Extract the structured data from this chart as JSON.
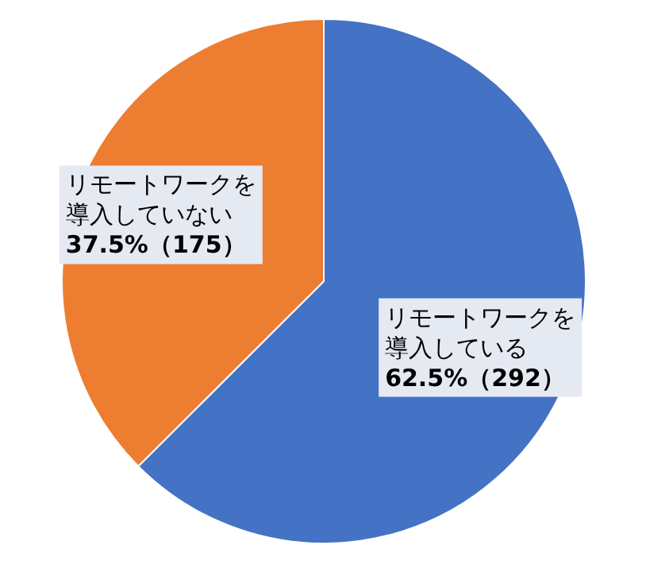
{
  "chart_data": {
    "type": "pie",
    "categories": [
      "リモートワークを導入している",
      "リモートワークを導入していない"
    ],
    "values": [
      292,
      175
    ],
    "colors": [
      "#4472c4",
      "#ed7d31"
    ],
    "value_labels": [
      "62.5%（292）",
      "37.5%（175）"
    ]
  }
}
